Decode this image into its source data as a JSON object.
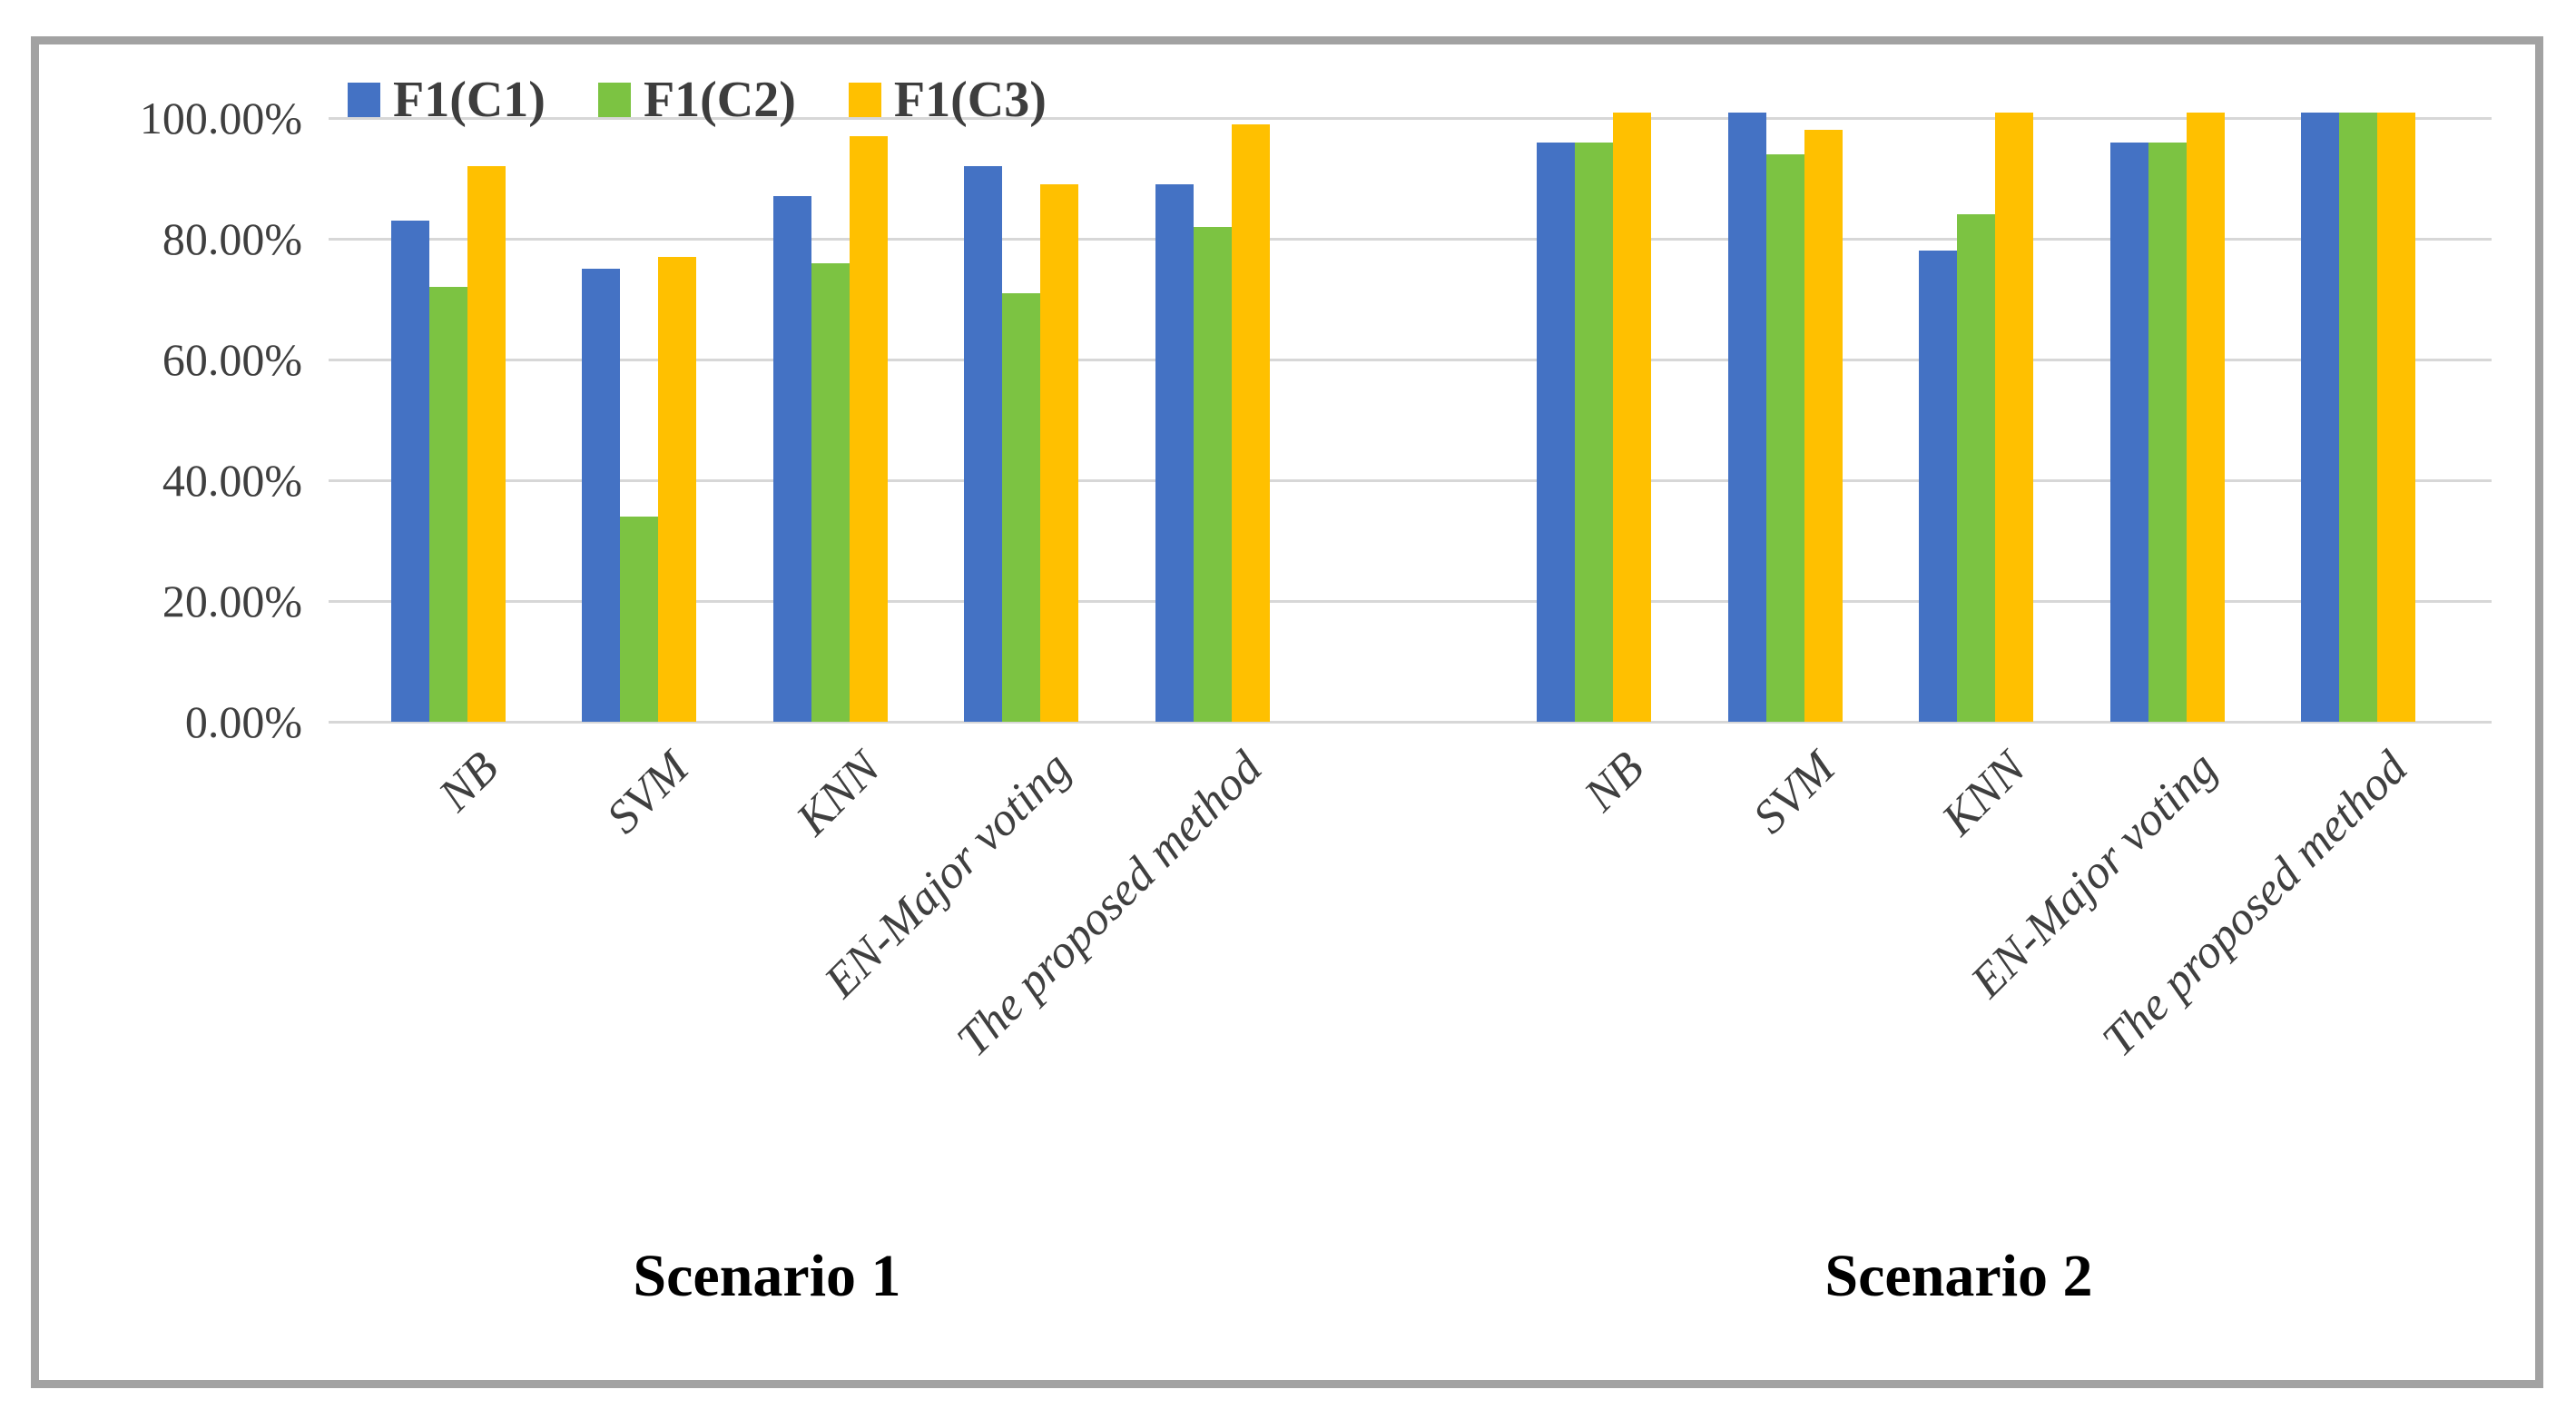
{
  "figure": {
    "background": "#ffffff",
    "frame_color": "#a2a2a2",
    "gridline_color": "#d7d7d7"
  },
  "legend": {
    "items": [
      {
        "label": "F1(C1)",
        "color": "#4472C4"
      },
      {
        "label": "F1(C2)",
        "color": "#7CC342"
      },
      {
        "label": "F1(C3)",
        "color": "#FFC000"
      }
    ]
  },
  "y_axis": {
    "tick_labels": [
      "100.00%",
      "80.00%",
      "60.00%",
      "40.00%",
      "20.00%",
      "0.00%"
    ],
    "tick_values": [
      100,
      80,
      60,
      40,
      20,
      0
    ]
  },
  "x_axis": {
    "group_labels": [
      "NB",
      "SVM",
      "KNN",
      "EN-Major voting",
      "The proposed method"
    ]
  },
  "scenario_labels": [
    "Scenario 1",
    "Scenario 2"
  ],
  "chart_data": {
    "type": "bar",
    "title": "",
    "xlabel": "",
    "ylabel": "",
    "ylim": [
      0,
      100
    ],
    "y_tick_step": 20,
    "y_tick_format": "percent",
    "grid": true,
    "legend_position": "top-left",
    "categories": [
      "NB",
      "SVM",
      "KNN",
      "EN-Major voting",
      "The proposed method"
    ],
    "scenarios": [
      {
        "label": "Scenario 1",
        "series": [
          {
            "name": "F1(C1)",
            "color": "#4472C4",
            "values": [
              83,
              75,
              87,
              92,
              89
            ]
          },
          {
            "name": "F1(C2)",
            "color": "#7CC342",
            "values": [
              72,
              34,
              76,
              71,
              82
            ]
          },
          {
            "name": "F1(C3)",
            "color": "#FFC000",
            "values": [
              92,
              77,
              97,
              89,
              99
            ]
          }
        ]
      },
      {
        "label": "Scenario 2",
        "series": [
          {
            "name": "F1(C1)",
            "color": "#4472C4",
            "values": [
              96,
              100,
              78,
              96,
              100
            ]
          },
          {
            "name": "F1(C2)",
            "color": "#7CC342",
            "values": [
              96,
              94,
              84,
              96,
              100
            ]
          },
          {
            "name": "F1(C3)",
            "color": "#FFC000",
            "values": [
              100,
              98,
              100,
              100,
              100
            ]
          }
        ]
      }
    ]
  }
}
